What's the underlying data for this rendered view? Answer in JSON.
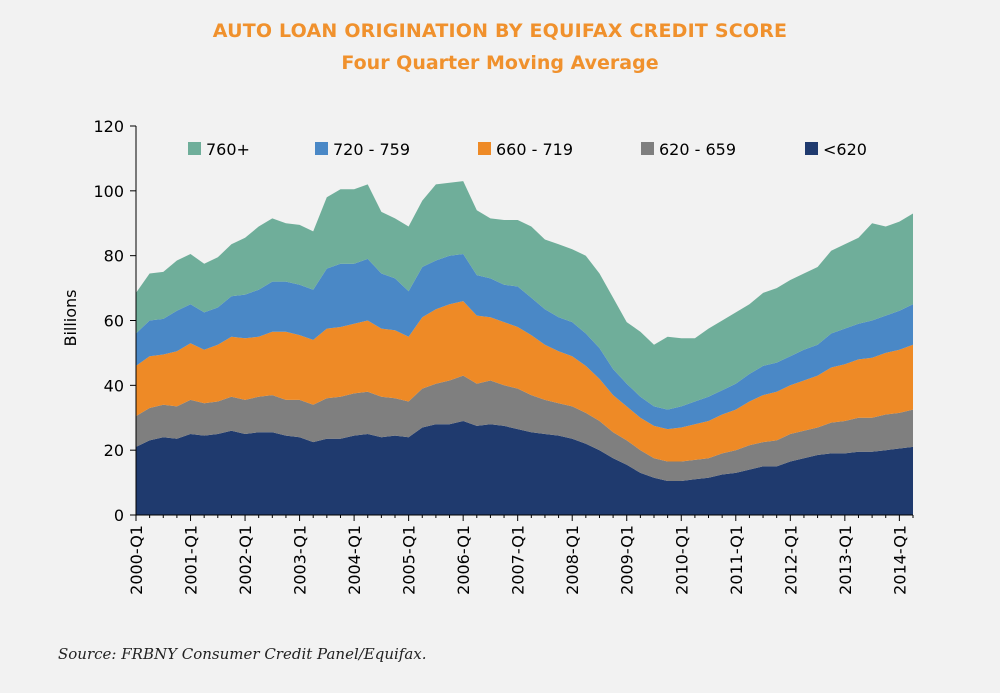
{
  "chart_data": {
    "type": "area",
    "stacked": true,
    "title": "AUTO LOAN ORIGINATION BY EQUIFAX CREDIT SCORE",
    "subtitle": "Four Quarter Moving Average",
    "ylabel": "Billions",
    "xlabel": "",
    "ylim": [
      0,
      120
    ],
    "yticks": [
      0,
      20,
      40,
      60,
      80,
      100,
      120
    ],
    "grid": false,
    "legend_position": "top",
    "x": [
      "2000-Q1",
      "2000-Q2",
      "2000-Q3",
      "2000-Q4",
      "2001-Q1",
      "2001-Q2",
      "2001-Q3",
      "2001-Q4",
      "2002-Q1",
      "2002-Q2",
      "2002-Q3",
      "2002-Q4",
      "2003-Q1",
      "2003-Q2",
      "2003-Q3",
      "2003-Q4",
      "2004-Q1",
      "2004-Q2",
      "2004-Q3",
      "2004-Q4",
      "2005-Q1",
      "2005-Q2",
      "2005-Q3",
      "2005-Q4",
      "2006-Q1",
      "2006-Q2",
      "2006-Q3",
      "2006-Q4",
      "2007-Q1",
      "2007-Q2",
      "2007-Q3",
      "2007-Q4",
      "2008-Q1",
      "2008-Q2",
      "2008-Q3",
      "2008-Q4",
      "2009-Q1",
      "2009-Q2",
      "2009-Q3",
      "2009-Q4",
      "2010-Q1",
      "2010-Q2",
      "2010-Q3",
      "2010-Q4",
      "2011-Q1",
      "2011-Q2",
      "2011-Q3",
      "2011-Q4",
      "2012-Q1",
      "2012-Q2",
      "2012-Q3",
      "2012-Q4",
      "2013-Q1",
      "2013-Q2",
      "2013-Q3",
      "2013-Q4",
      "2014-Q1",
      "2014-Q2"
    ],
    "xtick_labels": [
      "2000-Q1",
      "2001-Q1",
      "2002-Q1",
      "2003-Q1",
      "2004-Q1",
      "2005-Q1",
      "2006-Q1",
      "2007-Q1",
      "2008-Q1",
      "2009-Q1",
      "2010-Q1",
      "2011-Q1",
      "2012-Q1",
      "2013-Q1",
      "2014-Q1"
    ],
    "series": [
      {
        "name": "<620",
        "color": "#1f3a6e",
        "values": [
          21,
          23,
          24,
          23.5,
          25,
          24.5,
          25,
          26,
          25,
          25.5,
          25.5,
          24.5,
          24,
          22.5,
          23.5,
          23.5,
          24.5,
          25,
          24,
          24.5,
          24,
          27,
          28,
          28,
          29,
          27.5,
          28,
          27.5,
          26.5,
          25.5,
          25,
          24.5,
          23.5,
          22,
          20,
          17.5,
          15.5,
          13,
          11.5,
          10.5,
          10.5,
          11,
          11.5,
          12.5,
          13,
          14,
          15,
          15,
          16.5,
          17.5,
          18.5,
          19,
          19,
          19.5,
          19.5,
          20,
          20.5,
          21
        ]
      },
      {
        "name": "620 - 659",
        "color": "#7f7f7f",
        "values": [
          9.5,
          10,
          10,
          10,
          10.5,
          10,
          10,
          10.5,
          10.5,
          11,
          11.5,
          11,
          11.5,
          11.5,
          12.5,
          13,
          13,
          13,
          12.5,
          11.5,
          11,
          12,
          12.5,
          13.5,
          14,
          13,
          13.5,
          12.5,
          12.5,
          11.5,
          10.5,
          10,
          10,
          9.5,
          9,
          8,
          7.5,
          7,
          6,
          6,
          6,
          6,
          6,
          6.5,
          7,
          7.5,
          7.5,
          8,
          8.5,
          8.5,
          8.5,
          9.5,
          10,
          10.5,
          10.5,
          11,
          11,
          11.5
        ]
      },
      {
        "name": "660 - 719",
        "color": "#ee8a26",
        "values": [
          15.5,
          16,
          15.5,
          17,
          17.5,
          16.5,
          17.5,
          18.5,
          19,
          18.5,
          19.5,
          21,
          20,
          20,
          21.5,
          21.5,
          21.5,
          22,
          21,
          21,
          20,
          22,
          23,
          23.5,
          23,
          21,
          19.5,
          19.5,
          19,
          18.5,
          17,
          16,
          15.5,
          14.5,
          13,
          11.5,
          10.5,
          10,
          10,
          10,
          10.5,
          11,
          11.5,
          12,
          12.5,
          13.5,
          14.5,
          15,
          15,
          15.5,
          16,
          17,
          17.5,
          18,
          18.5,
          19,
          19.5,
          20
        ]
      },
      {
        "name": "720 - 759",
        "color": "#4a88c6",
        "values": [
          10,
          11,
          11,
          12.5,
          12,
          11.5,
          11.5,
          12.5,
          13.5,
          14.5,
          15.5,
          15.5,
          15.5,
          15.5,
          18.5,
          19.5,
          18.5,
          19,
          17,
          16,
          14,
          15.5,
          15,
          15,
          14.5,
          12.5,
          12,
          11.5,
          12.5,
          11.5,
          11,
          10.5,
          10.5,
          10,
          9.5,
          8,
          7,
          6.5,
          6,
          6,
          6.5,
          7,
          7.5,
          7.5,
          8,
          8.5,
          9,
          9,
          9,
          9.5,
          9.5,
          10.5,
          11,
          11,
          11.5,
          11.5,
          12,
          12.5
        ]
      },
      {
        "name": "760+",
        "color": "#6fae9a",
        "values": [
          12.5,
          14.5,
          14.5,
          15.5,
          15.5,
          15,
          15.5,
          16,
          17.5,
          19.5,
          19.5,
          18,
          18.5,
          18,
          22,
          23,
          23,
          23,
          19,
          18.5,
          20,
          20.5,
          23.5,
          22.5,
          22.5,
          20,
          18.5,
          20,
          20.5,
          22,
          21.5,
          22.5,
          22.5,
          24,
          23,
          22,
          19,
          20,
          19,
          22.5,
          21,
          19.5,
          21,
          21.5,
          22,
          21.5,
          22.5,
          23,
          23.5,
          23.5,
          24,
          25.5,
          26,
          26.5,
          30,
          27.5,
          27.5,
          28
        ]
      }
    ]
  },
  "source": "Source: FRBNY Consumer Credit Panel/Equifax."
}
